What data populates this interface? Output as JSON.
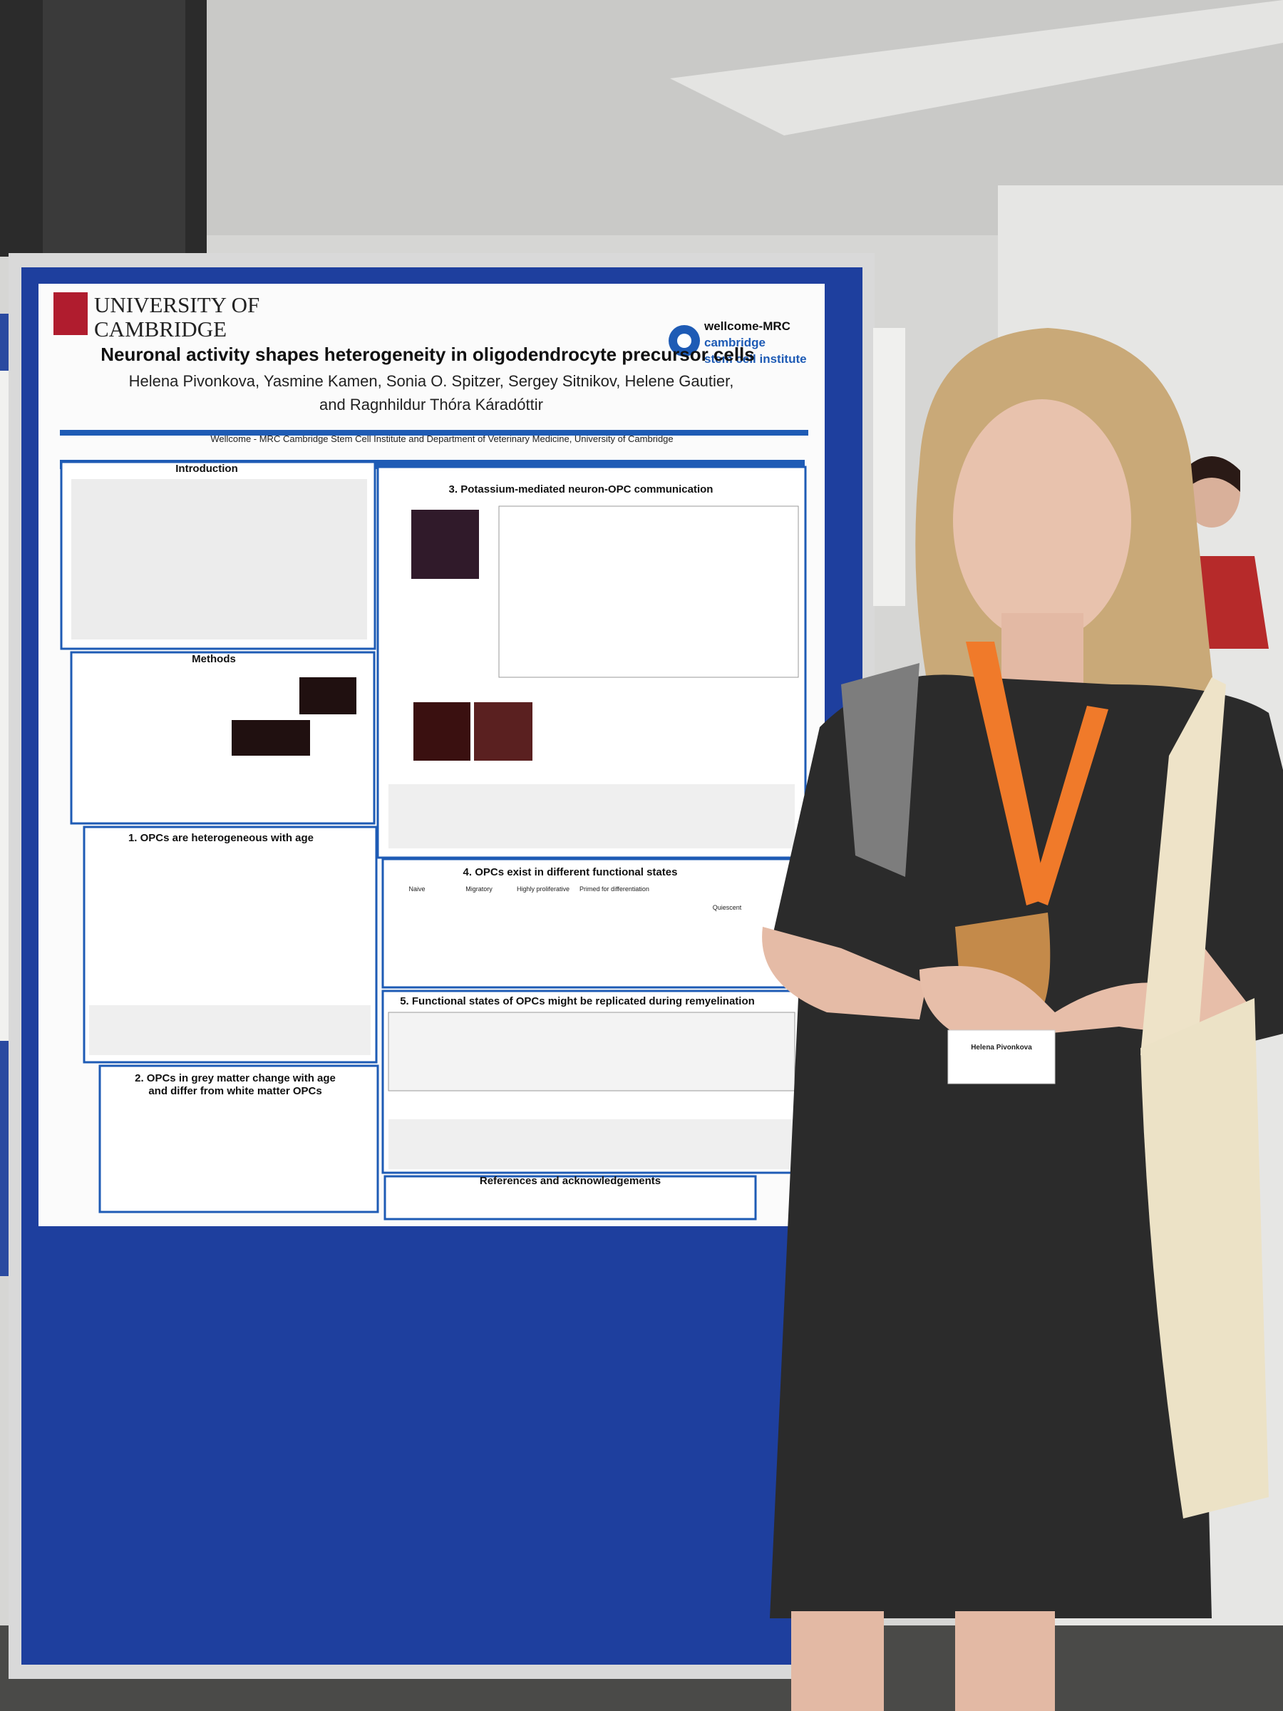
{
  "poster": {
    "institution": [
      "UNIVERSITY OF",
      "CAMBRIDGE"
    ],
    "partner": [
      "wellcome-MRC",
      "cambridge",
      "stem cell institute"
    ],
    "title": "Neuronal activity shapes heterogeneity in oligodendrocyte precursor cells",
    "authors": [
      "Helena Pivonkova, Yasmine Kamen, Sonia O. Spitzer, Sergey Sitnikov, Helene Gautier,",
      "and Ragnhildur Thóra Káradóttir"
    ],
    "affiliation": "Wellcome - MRC Cambridge Stem Cell Institute and Department of Veterinary Medicine, University of Cambridge",
    "sections": [
      {
        "lines": [
          "Introduction"
        ]
      },
      {
        "lines": [
          "Methods"
        ]
      },
      {
        "lines": [
          "1. OPCs are heterogeneous with age"
        ]
      },
      {
        "lines": [
          "2. OPCs in grey matter change with age",
          "and differ from white matter OPCs"
        ]
      },
      {
        "lines": [
          "3. Potassium-mediated neuron-OPC communication"
        ]
      },
      {
        "lines": [
          "4. OPCs exist in different functional states"
        ]
      },
      {
        "lines": [
          "5. Functional states of OPCs might be replicated during remyelination"
        ]
      },
      {
        "lines": [
          "References and acknowledgements"
        ]
      }
    ],
    "states": [
      "Naive",
      "Migratory",
      "Highly proliferative",
      "Primed for differentiation",
      "Quiescent"
    ]
  },
  "badge": {
    "name": "Helena Pivonkova"
  }
}
